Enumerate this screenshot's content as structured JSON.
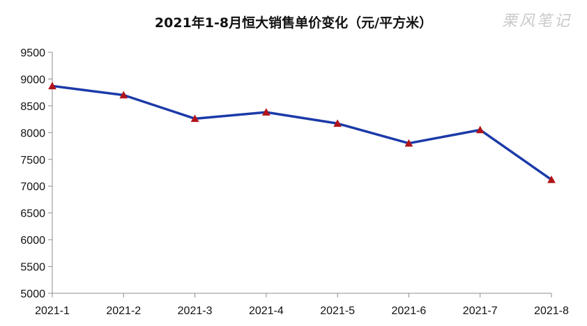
{
  "watermark": "栗风笔记",
  "chart_data": {
    "type": "line",
    "title": "2021年1-8月恒大销售单价变化（元/平方米）",
    "xlabel": "",
    "ylabel": "",
    "categories": [
      "2021-1",
      "2021-2",
      "2021-3",
      "2021-4",
      "2021-5",
      "2021-6",
      "2021-7",
      "2021-8"
    ],
    "series": [
      {
        "values": [
          8870,
          8700,
          8260,
          8380,
          8170,
          7800,
          8050,
          7120
        ],
        "color": "#1c3aa8",
        "marker": "triangle",
        "marker_color": "#b01419"
      }
    ],
    "ylim": [
      5000,
      9500
    ],
    "yticks": [
      5000,
      5500,
      6000,
      6500,
      7000,
      7500,
      8000,
      8500,
      9000,
      9500
    ],
    "grid": false,
    "legend": "none"
  }
}
